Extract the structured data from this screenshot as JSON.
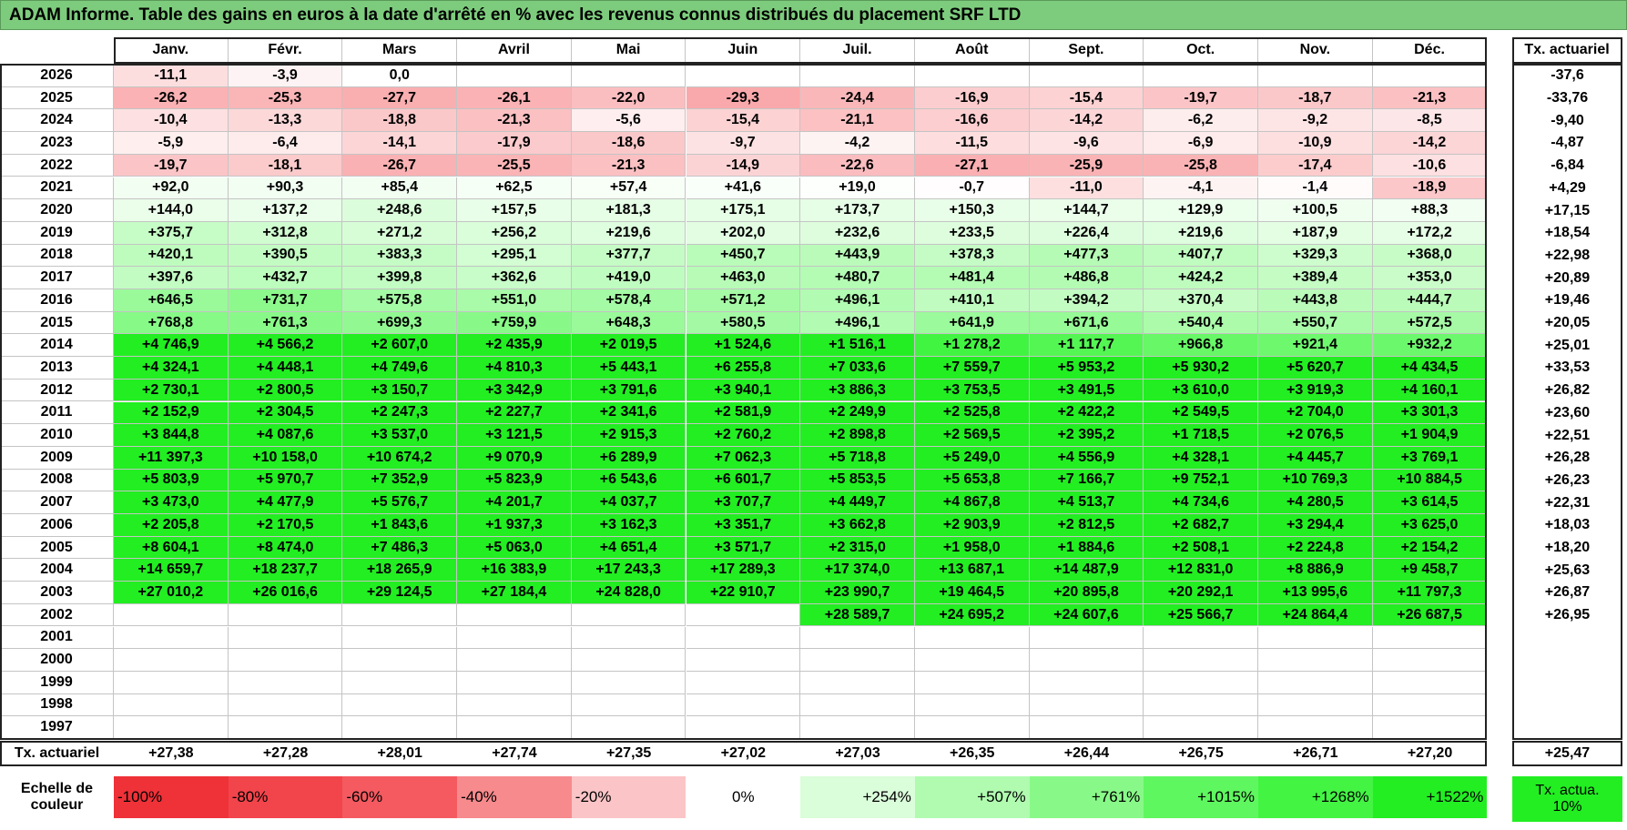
{
  "title": "ADAM Informe. Table des gains en euros à la date d'arrêté en % avec les revenus connus distribués du placement SRF LTD",
  "columns": [
    "Janv.",
    "Févr.",
    "Mars",
    "Avril",
    "Mai",
    "Juin",
    "Juil.",
    "Août",
    "Sept.",
    "Oct.",
    "Nov.",
    "Déc."
  ],
  "total_header": "Tx. actuariel",
  "rows": [
    {
      "year": "2026",
      "values": [
        "-11,1",
        "-3,9",
        "0,0",
        null,
        null,
        null,
        null,
        null,
        null,
        null,
        null,
        null
      ],
      "total": "-37,6"
    },
    {
      "year": "2025",
      "values": [
        "-26,2",
        "-25,3",
        "-27,7",
        "-26,1",
        "-22,0",
        "-29,3",
        "-24,4",
        "-16,9",
        "-15,4",
        "-19,7",
        "-18,7",
        "-21,3"
      ],
      "total": "-33,76"
    },
    {
      "year": "2024",
      "values": [
        "-10,4",
        "-13,3",
        "-18,8",
        "-21,3",
        "-5,6",
        "-15,4",
        "-21,1",
        "-16,6",
        "-14,2",
        "-6,2",
        "-9,2",
        "-8,5"
      ],
      "total": "-9,40"
    },
    {
      "year": "2023",
      "values": [
        "-5,9",
        "-6,4",
        "-14,1",
        "-17,9",
        "-18,6",
        "-9,7",
        "-4,2",
        "-11,5",
        "-9,6",
        "-6,9",
        "-10,9",
        "-14,2"
      ],
      "total": "-4,87"
    },
    {
      "year": "2022",
      "values": [
        "-19,7",
        "-18,1",
        "-26,7",
        "-25,5",
        "-21,3",
        "-14,9",
        "-22,6",
        "-27,1",
        "-25,9",
        "-25,8",
        "-17,4",
        "-10,6"
      ],
      "total": "-6,84"
    },
    {
      "year": "2021",
      "values": [
        "+92,0",
        "+90,3",
        "+85,4",
        "+62,5",
        "+57,4",
        "+41,6",
        "+19,0",
        "-0,7",
        "-11,0",
        "-4,1",
        "-1,4",
        "-18,9"
      ],
      "total": "+4,29"
    },
    {
      "year": "2020",
      "values": [
        "+144,0",
        "+137,2",
        "+248,6",
        "+157,5",
        "+181,3",
        "+175,1",
        "+173,7",
        "+150,3",
        "+144,7",
        "+129,9",
        "+100,5",
        "+88,3"
      ],
      "total": "+17,15"
    },
    {
      "year": "2019",
      "values": [
        "+375,7",
        "+312,8",
        "+271,2",
        "+256,2",
        "+219,6",
        "+202,0",
        "+232,6",
        "+233,5",
        "+226,4",
        "+219,6",
        "+187,9",
        "+172,2"
      ],
      "total": "+18,54"
    },
    {
      "year": "2018",
      "values": [
        "+420,1",
        "+390,5",
        "+383,3",
        "+295,1",
        "+377,7",
        "+450,7",
        "+443,9",
        "+378,3",
        "+477,3",
        "+407,7",
        "+329,3",
        "+368,0"
      ],
      "total": "+22,98"
    },
    {
      "year": "2017",
      "values": [
        "+397,6",
        "+432,7",
        "+399,8",
        "+362,6",
        "+419,0",
        "+463,0",
        "+480,7",
        "+481,4",
        "+486,8",
        "+424,2",
        "+389,4",
        "+353,0"
      ],
      "total": "+20,89"
    },
    {
      "year": "2016",
      "values": [
        "+646,5",
        "+731,7",
        "+575,8",
        "+551,0",
        "+578,4",
        "+571,2",
        "+496,1",
        "+410,1",
        "+394,2",
        "+370,4",
        "+443,8",
        "+444,7"
      ],
      "total": "+19,46"
    },
    {
      "year": "2015",
      "values": [
        "+768,8",
        "+761,3",
        "+699,3",
        "+759,9",
        "+648,3",
        "+580,5",
        "+496,1",
        "+641,9",
        "+671,6",
        "+540,4",
        "+550,7",
        "+572,5"
      ],
      "total": "+20,05"
    },
    {
      "year": "2014",
      "values": [
        "+4 746,9",
        "+4 566,2",
        "+2 607,0",
        "+2 435,9",
        "+2 019,5",
        "+1 524,6",
        "+1 516,1",
        "+1 278,2",
        "+1 117,7",
        "+966,8",
        "+921,4",
        "+932,2"
      ],
      "total": "+25,01"
    },
    {
      "year": "2013",
      "values": [
        "+4 324,1",
        "+4 448,1",
        "+4 749,6",
        "+4 810,3",
        "+5 443,1",
        "+6 255,8",
        "+7 033,6",
        "+7 559,7",
        "+5 953,2",
        "+5 930,2",
        "+5 620,7",
        "+4 434,5"
      ],
      "total": "+33,53"
    },
    {
      "year": "2012",
      "values": [
        "+2 730,1",
        "+2 800,5",
        "+3 150,7",
        "+3 342,9",
        "+3 791,6",
        "+3 940,1",
        "+3 886,3",
        "+3 753,5",
        "+3 491,5",
        "+3 610,0",
        "+3 919,3",
        "+4 160,1"
      ],
      "total": "+26,82"
    },
    {
      "year": "2011",
      "values": [
        "+2 152,9",
        "+2 304,5",
        "+2 247,3",
        "+2 227,7",
        "+2 341,6",
        "+2 581,9",
        "+2 249,9",
        "+2 525,8",
        "+2 422,2",
        "+2 549,5",
        "+2 704,0",
        "+3 301,3"
      ],
      "total": "+23,60"
    },
    {
      "year": "2010",
      "values": [
        "+3 844,8",
        "+4 087,6",
        "+3 537,0",
        "+3 121,5",
        "+2 915,3",
        "+2 760,2",
        "+2 898,8",
        "+2 569,5",
        "+2 395,2",
        "+1 718,5",
        "+2 076,5",
        "+1 904,9"
      ],
      "total": "+22,51"
    },
    {
      "year": "2009",
      "values": [
        "+11 397,3",
        "+10 158,0",
        "+10 674,2",
        "+9 070,9",
        "+6 289,9",
        "+7 062,3",
        "+5 718,8",
        "+5 249,0",
        "+4 556,9",
        "+4 328,1",
        "+4 445,7",
        "+3 769,1"
      ],
      "total": "+26,28"
    },
    {
      "year": "2008",
      "values": [
        "+5 803,9",
        "+5 970,7",
        "+7 352,9",
        "+5 823,9",
        "+6 543,6",
        "+6 601,7",
        "+5 853,5",
        "+5 653,8",
        "+7 166,7",
        "+9 752,1",
        "+10 769,3",
        "+10 884,5"
      ],
      "total": "+26,23"
    },
    {
      "year": "2007",
      "values": [
        "+3 473,0",
        "+4 477,9",
        "+5 576,7",
        "+4 201,7",
        "+4 037,7",
        "+3 707,7",
        "+4 449,7",
        "+4 867,8",
        "+4 513,7",
        "+4 734,6",
        "+4 280,5",
        "+3 614,5"
      ],
      "total": "+22,31"
    },
    {
      "year": "2006",
      "values": [
        "+2 205,8",
        "+2 170,5",
        "+1 843,6",
        "+1 937,3",
        "+3 162,3",
        "+3 351,7",
        "+3 662,8",
        "+2 903,9",
        "+2 812,5",
        "+2 682,7",
        "+3 294,4",
        "+3 625,0"
      ],
      "total": "+18,03"
    },
    {
      "year": "2005",
      "values": [
        "+8 604,1",
        "+8 474,0",
        "+7 486,3",
        "+5 063,0",
        "+4 651,4",
        "+3 571,7",
        "+2 315,0",
        "+1 958,0",
        "+1 884,6",
        "+2 508,1",
        "+2 224,8",
        "+2 154,2"
      ],
      "total": "+18,20"
    },
    {
      "year": "2004",
      "values": [
        "+14 659,7",
        "+18 237,7",
        "+18 265,9",
        "+16 383,9",
        "+17 243,3",
        "+17 289,3",
        "+17 374,0",
        "+13 687,1",
        "+14 487,9",
        "+12 831,0",
        "+8 886,9",
        "+9 458,7"
      ],
      "total": "+25,63"
    },
    {
      "year": "2003",
      "values": [
        "+27 010,2",
        "+26 016,6",
        "+29 124,5",
        "+27 184,4",
        "+24 828,0",
        "+22 910,7",
        "+23 990,7",
        "+19 464,5",
        "+20 895,8",
        "+20 292,1",
        "+13 995,6",
        "+11 797,3"
      ],
      "total": "+26,87"
    },
    {
      "year": "2002",
      "values": [
        null,
        null,
        null,
        null,
        null,
        null,
        "+28 589,7",
        "+24 695,2",
        "+24 607,6",
        "+25 566,7",
        "+24 864,4",
        "+26 687,5"
      ],
      "total": "+26,95"
    },
    {
      "year": "2001",
      "values": [
        null,
        null,
        null,
        null,
        null,
        null,
        null,
        null,
        null,
        null,
        null,
        null
      ],
      "total": null
    },
    {
      "year": "2000",
      "values": [
        null,
        null,
        null,
        null,
        null,
        null,
        null,
        null,
        null,
        null,
        null,
        null
      ],
      "total": null
    },
    {
      "year": "1999",
      "values": [
        null,
        null,
        null,
        null,
        null,
        null,
        null,
        null,
        null,
        null,
        null,
        null
      ],
      "total": null
    },
    {
      "year": "1998",
      "values": [
        null,
        null,
        null,
        null,
        null,
        null,
        null,
        null,
        null,
        null,
        null,
        null
      ],
      "total": null
    },
    {
      "year": "1997",
      "values": [
        null,
        null,
        null,
        null,
        null,
        null,
        null,
        null,
        null,
        null,
        null,
        null
      ],
      "total": null
    }
  ],
  "footer": {
    "label": "Tx. actuariel",
    "values": [
      "+27,38",
      "+27,28",
      "+28,01",
      "+27,74",
      "+27,35",
      "+27,02",
      "+27,03",
      "+26,35",
      "+26,44",
      "+26,75",
      "+26,71",
      "+27,20"
    ],
    "total": "+25,47"
  },
  "scale": {
    "label": "Echelle de couleur",
    "items": [
      {
        "label": "-100%",
        "color": "#ef3138"
      },
      {
        "label": "-80%",
        "color": "#f2444b"
      },
      {
        "label": "-60%",
        "color": "#f45a60"
      },
      {
        "label": "-40%",
        "color": "#f78a8d"
      },
      {
        "label": "-20%",
        "color": "#fbc4c6"
      },
      {
        "label": "0%",
        "color": "#ffffff"
      },
      {
        "label": "+254%",
        "color": "#dafdda"
      },
      {
        "label": "+507%",
        "color": "#b0fbb0"
      },
      {
        "label": "+761%",
        "color": "#88f988"
      },
      {
        "label": "+1015%",
        "color": "#5ff75f"
      },
      {
        "label": "+1268%",
        "color": "#43f443"
      },
      {
        "label": "+1522%",
        "color": "#22ee22"
      }
    ],
    "target": {
      "label": "Tx. actua. 10%",
      "color": "#22ee22"
    }
  }
}
